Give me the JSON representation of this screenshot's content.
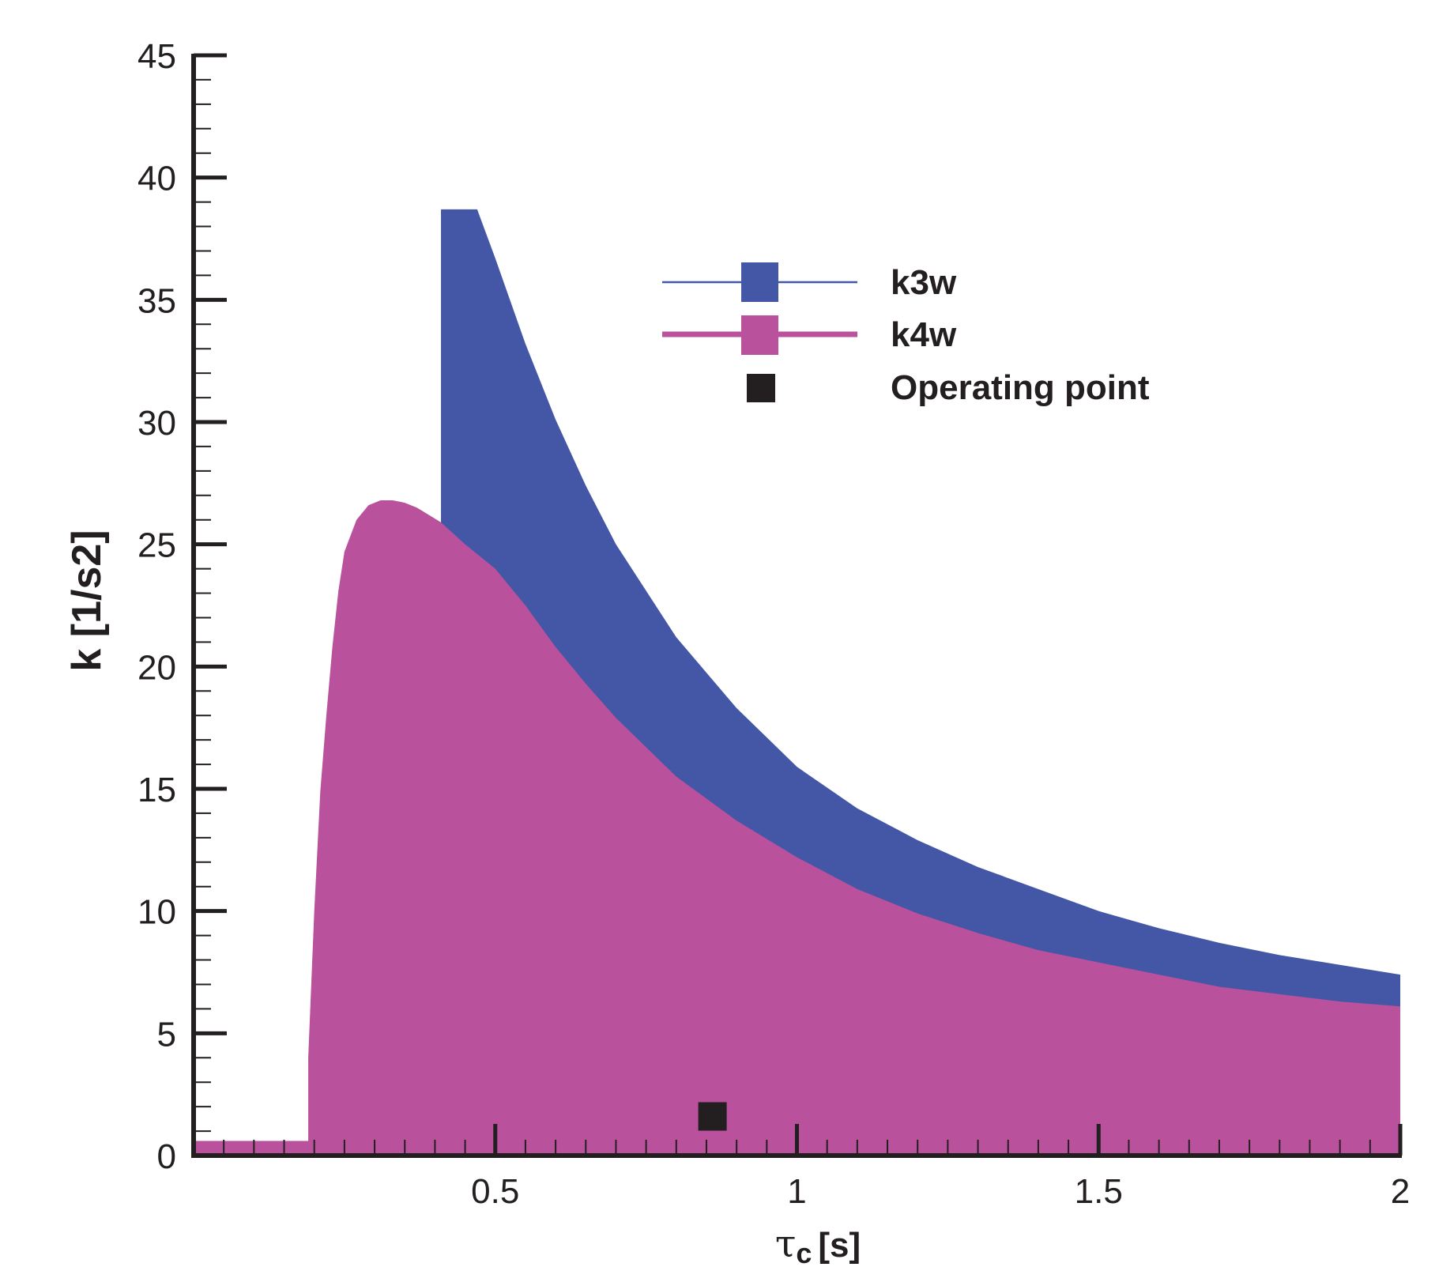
{
  "chart_data": {
    "type": "area",
    "xlabel": "τc [s]",
    "xlabel_main": "τ",
    "xlabel_sub": "c",
    "xlabel_unit": "[s]",
    "ylabel": "k [1/s2]",
    "xlim": [
      0.0,
      2.0
    ],
    "ylim": [
      0,
      45
    ],
    "x_ticks": [
      {
        "value": 0.5,
        "label": "0.5"
      },
      {
        "value": 1,
        "label": "1"
      },
      {
        "value": 1.5,
        "label": "1.5"
      },
      {
        "value": 2,
        "label": "2"
      }
    ],
    "y_ticks": [
      {
        "value": 0,
        "label": "0"
      },
      {
        "value": 5,
        "label": "5"
      },
      {
        "value": 10,
        "label": "10"
      },
      {
        "value": 15,
        "label": "15"
      },
      {
        "value": 20,
        "label": "20"
      },
      {
        "value": 25,
        "label": "25"
      },
      {
        "value": 30,
        "label": "30"
      },
      {
        "value": 35,
        "label": "35"
      },
      {
        "value": 40,
        "label": "40"
      },
      {
        "value": 45,
        "label": "45"
      }
    ],
    "legend_position": "top-right",
    "series": [
      {
        "name": "k3w",
        "color": "#4357a6",
        "x": [
          0.41,
          0.44,
          0.47,
          0.5,
          0.55,
          0.6,
          0.65,
          0.7,
          0.8,
          0.9,
          1.0,
          1.1,
          1.2,
          1.3,
          1.4,
          1.5,
          1.6,
          1.7,
          1.8,
          1.9,
          2.0
        ],
        "values": [
          38.7,
          38.7,
          38.7,
          36.7,
          33.2,
          30.1,
          27.4,
          25.0,
          21.2,
          18.3,
          15.9,
          14.2,
          12.9,
          11.8,
          10.9,
          10.0,
          9.3,
          8.7,
          8.2,
          7.8,
          7.4
        ]
      },
      {
        "name": "k4w",
        "color": "#b9519c",
        "x": [
          0.0,
          0.19,
          0.19,
          0.2,
          0.21,
          0.22,
          0.23,
          0.24,
          0.25,
          0.27,
          0.29,
          0.31,
          0.33,
          0.35,
          0.37,
          0.39,
          0.41,
          0.45,
          0.5,
          0.55,
          0.6,
          0.65,
          0.7,
          0.8,
          0.9,
          1.0,
          1.1,
          1.2,
          1.3,
          1.4,
          1.5,
          1.6,
          1.7,
          1.8,
          1.9,
          2.0
        ],
        "values": [
          0.6,
          0.6,
          4.0,
          10.0,
          14.9,
          18.0,
          20.8,
          23.1,
          24.7,
          26.0,
          26.6,
          26.8,
          26.8,
          26.7,
          26.5,
          26.2,
          25.9,
          25.0,
          24.0,
          22.5,
          20.8,
          19.3,
          17.9,
          15.5,
          13.7,
          12.2,
          10.9,
          9.9,
          9.1,
          8.4,
          7.9,
          7.4,
          6.9,
          6.6,
          6.3,
          6.1
        ]
      }
    ],
    "markers": [
      {
        "name": "Operating point",
        "x": 0.86,
        "y": 1.6,
        "color": "#231f20"
      }
    ]
  }
}
